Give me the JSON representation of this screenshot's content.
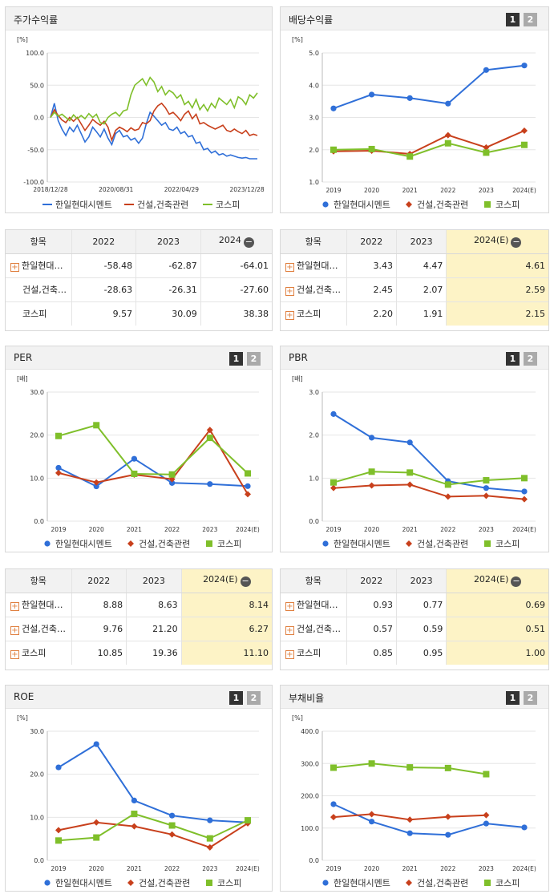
{
  "colors": {
    "s1": "#2f6fd8",
    "s2": "#c8401c",
    "s3": "#7fbf2a"
  },
  "legend": [
    "한일현대시멘트",
    "건설,건축관련",
    "코스피"
  ],
  "panels": {
    "p1": {
      "title": "주가수익률"
    },
    "p2": {
      "title": "배당수익률",
      "b1": "1",
      "b2": "2"
    },
    "p3": {
      "title": "PER",
      "b1": "1",
      "b2": "2"
    },
    "p4": {
      "title": "PBR",
      "b1": "1",
      "b2": "2"
    },
    "p5": {
      "title": "ROE",
      "b1": "1",
      "b2": "2"
    },
    "p6": {
      "title": "부채비율",
      "b1": "1",
      "b2": "2"
    }
  },
  "tables": {
    "t1": {
      "head": [
        "항목",
        "2022",
        "2023",
        "2024"
      ],
      "rows": [
        {
          "name": "한일현대…",
          "plus": true,
          "v": [
            "-58.48",
            "-62.87",
            "-64.01"
          ]
        },
        {
          "name": "건설,건축…",
          "plus": false,
          "v": [
            "-28.63",
            "-26.31",
            "-27.60"
          ]
        },
        {
          "name": "코스피",
          "plus": false,
          "v": [
            "9.57",
            "30.09",
            "38.38"
          ]
        }
      ]
    },
    "t2": {
      "head": [
        "항목",
        "2022",
        "2023",
        "2024(E)"
      ],
      "rows": [
        {
          "name": "한일현대…",
          "plus": true,
          "v": [
            "3.43",
            "4.47",
            "4.61"
          ]
        },
        {
          "name": "건설,건축…",
          "plus": true,
          "v": [
            "2.45",
            "2.07",
            "2.59"
          ]
        },
        {
          "name": "코스피",
          "plus": true,
          "v": [
            "2.20",
            "1.91",
            "2.15"
          ]
        }
      ]
    },
    "t3": {
      "head": [
        "항목",
        "2022",
        "2023",
        "2024(E)"
      ],
      "rows": [
        {
          "name": "한일현대…",
          "plus": true,
          "v": [
            "8.88",
            "8.63",
            "8.14"
          ]
        },
        {
          "name": "건설,건축…",
          "plus": true,
          "v": [
            "9.76",
            "21.20",
            "6.27"
          ]
        },
        {
          "name": "코스피",
          "plus": true,
          "v": [
            "10.85",
            "19.36",
            "11.10"
          ]
        }
      ]
    },
    "t4": {
      "head": [
        "항목",
        "2022",
        "2023",
        "2024(E)"
      ],
      "rows": [
        {
          "name": "한일현대…",
          "plus": true,
          "v": [
            "0.93",
            "0.77",
            "0.69"
          ]
        },
        {
          "name": "건설,건축…",
          "plus": true,
          "v": [
            "0.57",
            "0.59",
            "0.51"
          ]
        },
        {
          "name": "코스피",
          "plus": true,
          "v": [
            "0.85",
            "0.95",
            "1.00"
          ]
        }
      ]
    }
  },
  "chart_data": [
    {
      "id": "c1",
      "type": "line",
      "title": "주가수익률",
      "unit": "[%]",
      "ylim": [
        -100,
        100
      ],
      "yticks": [
        "100.0",
        "50.0",
        "0.0",
        "-50.0",
        "-100.0"
      ],
      "xticks": [
        "2018/12/28",
        "2020/08/31",
        "2022/04/29",
        "2023/12/28"
      ],
      "series": [
        {
          "name": "한일현대시멘트",
          "values": [
            0,
            22,
            -5,
            -18,
            -28,
            -15,
            -22,
            -12,
            -25,
            -38,
            -30,
            -15,
            -22,
            -30,
            -18,
            -32,
            -42,
            -25,
            -20,
            -30,
            -28,
            -35,
            -32,
            -40,
            -32,
            -10,
            8,
            2,
            -5,
            -12,
            -8,
            -18,
            -20,
            -15,
            -25,
            -22,
            -30,
            -28,
            -40,
            -38,
            -50,
            -48,
            -55,
            -52,
            -58,
            -56,
            -60,
            -58,
            -60,
            -62,
            -63,
            -62,
            -64,
            -64,
            -64
          ]
        },
        {
          "name": "건설,건축관련",
          "values": [
            0,
            12,
            3,
            -4,
            -8,
            0,
            -6,
            0,
            -10,
            -20,
            -12,
            -3,
            -8,
            -12,
            -6,
            -15,
            -35,
            -20,
            -15,
            -18,
            -22,
            -16,
            -20,
            -18,
            -8,
            -10,
            -5,
            10,
            18,
            22,
            15,
            5,
            8,
            2,
            -5,
            5,
            10,
            -2,
            5,
            -10,
            -8,
            -12,
            -15,
            -18,
            -15,
            -12,
            -20,
            -22,
            -18,
            -22,
            -25,
            -20,
            -28,
            -26,
            -28
          ]
        },
        {
          "name": "코스피",
          "values": [
            0,
            8,
            2,
            5,
            0,
            -5,
            4,
            -2,
            3,
            -2,
            6,
            0,
            5,
            -8,
            -10,
            0,
            5,
            8,
            2,
            10,
            12,
            35,
            50,
            55,
            60,
            50,
            62,
            55,
            40,
            48,
            35,
            42,
            38,
            30,
            35,
            20,
            25,
            15,
            28,
            12,
            20,
            10,
            22,
            15,
            30,
            25,
            20,
            28,
            15,
            32,
            28,
            20,
            35,
            30,
            38
          ]
        }
      ]
    },
    {
      "id": "c2",
      "type": "line",
      "title": "배당수익률",
      "unit": "[%]",
      "ylim": [
        1,
        5
      ],
      "yticks": [
        "5.0",
        "4.0",
        "3.0",
        "2.0",
        "1.0"
      ],
      "categories": [
        "2019",
        "2020",
        "2021",
        "2022",
        "2023",
        "2024(E)"
      ],
      "series": [
        {
          "name": "한일현대시멘트",
          "values": [
            3.28,
            3.71,
            3.6,
            3.43,
            4.47,
            4.61
          ]
        },
        {
          "name": "건설,건축관련",
          "values": [
            1.95,
            1.97,
            1.87,
            2.45,
            2.07,
            2.59
          ]
        },
        {
          "name": "코스피",
          "values": [
            2.0,
            2.02,
            1.79,
            2.2,
            1.91,
            2.15
          ]
        }
      ]
    },
    {
      "id": "c3",
      "type": "line",
      "title": "PER",
      "unit": "[배]",
      "ylim": [
        0,
        30
      ],
      "yticks": [
        "30.0",
        "20.0",
        "10.0",
        "0.0"
      ],
      "categories": [
        "2019",
        "2020",
        "2021",
        "2022",
        "2023",
        "2024(E)"
      ],
      "series": [
        {
          "name": "한일현대시멘트",
          "values": [
            12.4,
            8.1,
            14.5,
            8.88,
            8.63,
            8.14
          ]
        },
        {
          "name": "건설,건축관련",
          "values": [
            11.2,
            9.0,
            10.8,
            9.76,
            21.2,
            6.27
          ]
        },
        {
          "name": "코스피",
          "values": [
            19.8,
            22.3,
            11.0,
            10.85,
            19.36,
            11.1
          ]
        }
      ]
    },
    {
      "id": "c4",
      "type": "line",
      "title": "PBR",
      "unit": "[배]",
      "ylim": [
        0,
        3
      ],
      "yticks": [
        "3.0",
        "2.0",
        "1.0",
        "0.0"
      ],
      "categories": [
        "2019",
        "2020",
        "2021",
        "2022",
        "2023",
        "2024(E)"
      ],
      "series": [
        {
          "name": "한일현대시멘트",
          "values": [
            2.49,
            1.94,
            1.83,
            0.93,
            0.77,
            0.69
          ]
        },
        {
          "name": "건설,건축관련",
          "values": [
            0.77,
            0.83,
            0.85,
            0.57,
            0.59,
            0.51
          ]
        },
        {
          "name": "코스피",
          "values": [
            0.9,
            1.15,
            1.13,
            0.85,
            0.95,
            1.0
          ]
        }
      ]
    },
    {
      "id": "c5",
      "type": "line",
      "title": "ROE",
      "unit": "[%]",
      "ylim": [
        0,
        30
      ],
      "yticks": [
        "30.0",
        "20.0",
        "10.0",
        "0.0"
      ],
      "categories": [
        "2019",
        "2020",
        "2021",
        "2022",
        "2023",
        "2024(E)"
      ],
      "series": [
        {
          "name": "한일현대시멘트",
          "values": [
            21.6,
            27.0,
            13.9,
            10.4,
            9.3,
            8.8
          ]
        },
        {
          "name": "건설,건축관련",
          "values": [
            7.0,
            8.8,
            7.9,
            6.0,
            3.0,
            8.6
          ]
        },
        {
          "name": "코스피",
          "values": [
            4.6,
            5.3,
            10.8,
            8.1,
            5.1,
            9.3
          ]
        }
      ]
    },
    {
      "id": "c6",
      "type": "line",
      "title": "부채비율",
      "unit": "[%]",
      "ylim": [
        0,
        400
      ],
      "yticks": [
        "400.0",
        "300.0",
        "200.0",
        "100.0",
        "0.0"
      ],
      "categories": [
        "2019",
        "2020",
        "2021",
        "2022",
        "2023",
        "2024(E)"
      ],
      "series": [
        {
          "name": "한일현대시멘트",
          "values": [
            174,
            120,
            84,
            79,
            114,
            102
          ]
        },
        {
          "name": "건설,건축관련",
          "values": [
            134,
            143,
            126,
            135,
            140,
            null
          ]
        },
        {
          "name": "코스피",
          "values": [
            287,
            300,
            288,
            286,
            267,
            null
          ]
        }
      ]
    }
  ]
}
